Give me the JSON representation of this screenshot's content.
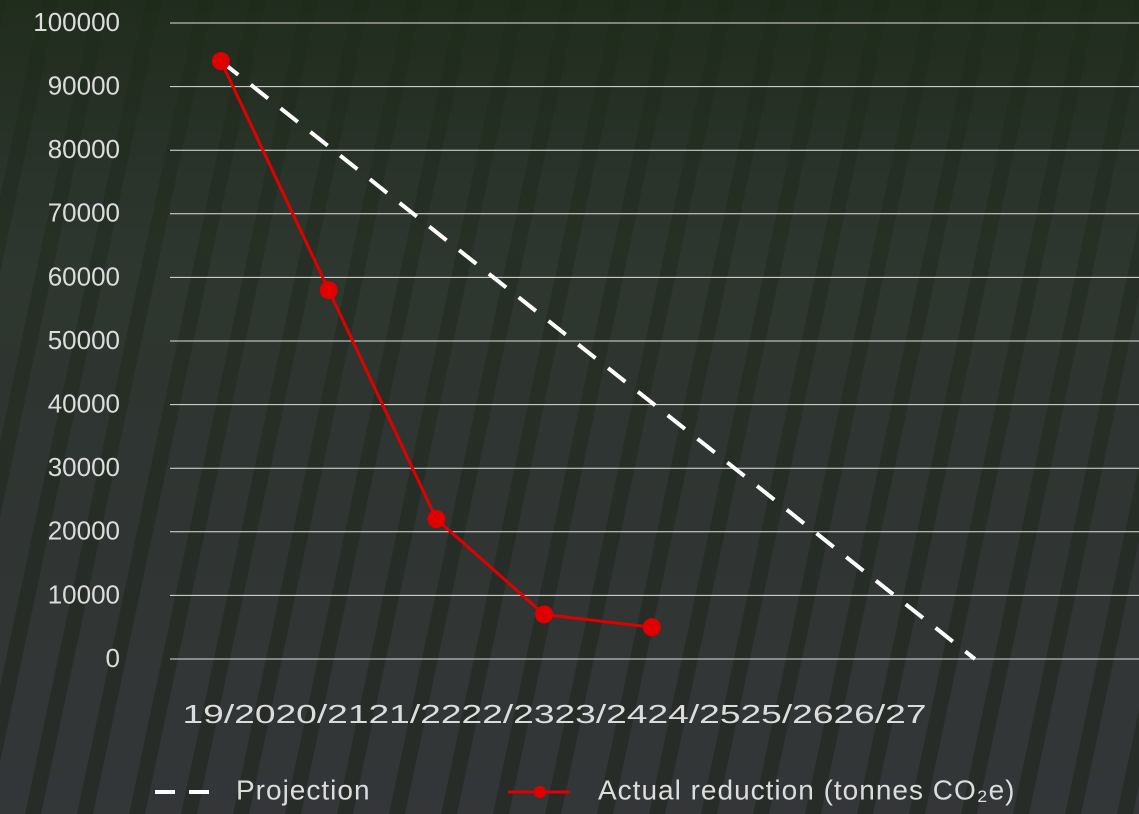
{
  "chart_data": {
    "type": "line",
    "categories": [
      "19/20",
      "20/21",
      "21/22",
      "22/23",
      "23/24",
      "24/25",
      "25/26",
      "26/27"
    ],
    "series": [
      {
        "name": "Projection",
        "color": "#ffffff",
        "style": "dashed",
        "values": [
          94000,
          80600,
          67100,
          53700,
          40300,
          26900,
          13400,
          0
        ]
      },
      {
        "name": "Actual reduction (tonnes CO₂e)",
        "color": "#e00000",
        "style": "solid",
        "markers": true,
        "values": [
          94000,
          58000,
          22000,
          7000,
          5000,
          null,
          null,
          null
        ]
      }
    ],
    "ylim": [
      0,
      100000
    ],
    "yticks": [
      0,
      10000,
      20000,
      30000,
      40000,
      50000,
      60000,
      70000,
      80000,
      90000,
      100000
    ],
    "grid": true,
    "legend": "bottom"
  }
}
